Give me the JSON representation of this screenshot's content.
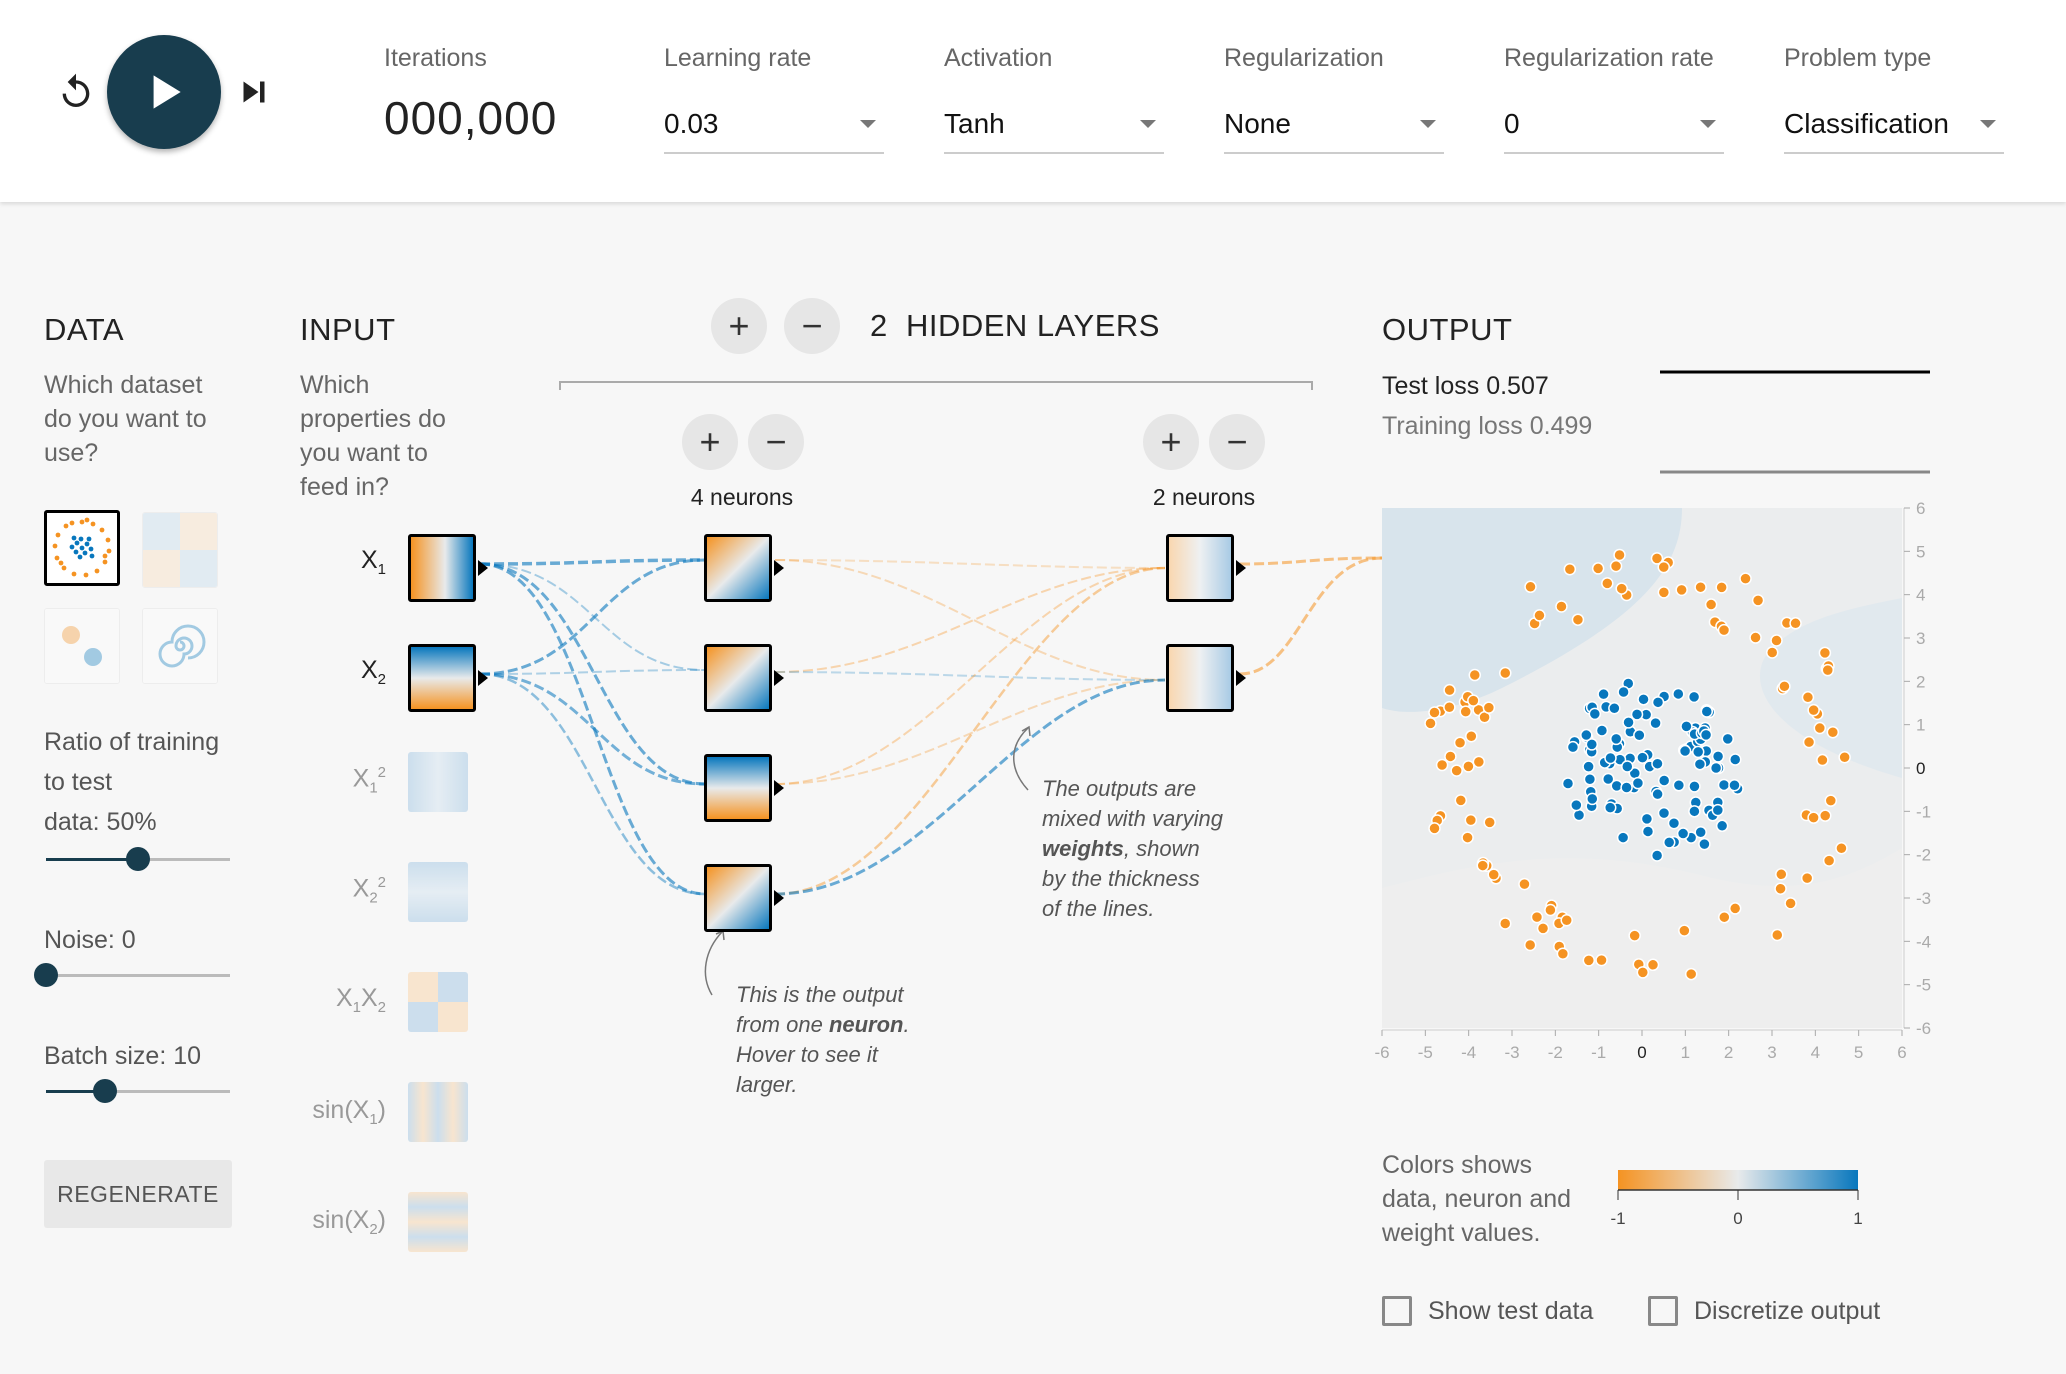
{
  "controls": {
    "reset_icon": "reset-icon",
    "play_icon": "play-icon",
    "step_icon": "step-forward-icon"
  },
  "iterations": {
    "label": "Iterations",
    "value": "000,000"
  },
  "learning_rate": {
    "label": "Learning rate",
    "value": "0.03"
  },
  "activation": {
    "label": "Activation",
    "value": "Tanh"
  },
  "regularization": {
    "label": "Regularization",
    "value": "None"
  },
  "regularization_rate": {
    "label": "Regularization rate",
    "value": "0"
  },
  "problem_type": {
    "label": "Problem type",
    "value": "Classification"
  },
  "data": {
    "title": "DATA",
    "question": [
      "Which dataset",
      "do you want to",
      "use?"
    ],
    "ratio_label": [
      "Ratio of training",
      "to test",
      "data:  50%"
    ],
    "ratio_value": 0.5,
    "noise_label": "Noise:  0",
    "noise_value": 0,
    "batch_label": "Batch size:  10",
    "batch_value": 0.32,
    "regenerate": "REGENERATE"
  },
  "input": {
    "title": "INPUT",
    "question": [
      "Which",
      "properties do",
      "you want to",
      "feed in?"
    ],
    "features": [
      {
        "base": "X",
        "sub": "1",
        "sup": "",
        "active": true
      },
      {
        "base": "X",
        "sub": "2",
        "sup": "",
        "active": true
      },
      {
        "base": "X",
        "sub": "1",
        "sup": "2",
        "active": false
      },
      {
        "base": "X",
        "sub": "2",
        "sup": "2",
        "active": false
      },
      {
        "base": "X",
        "sub": "1",
        "sup": "",
        "base2": "X",
        "sub2": "2",
        "active": false
      },
      {
        "base": "sin(X",
        "sub": "1",
        "sup": "",
        "close": ")",
        "active": false
      },
      {
        "base": "sin(X",
        "sub": "2",
        "sup": "",
        "close": ")",
        "active": false
      }
    ]
  },
  "hidden": {
    "count": "2",
    "title": "HIDDEN LAYERS",
    "layer1_label": "4 neurons",
    "layer2_label": "2 neurons",
    "plus": "+",
    "minus": "−"
  },
  "annotations": {
    "neuron_note": [
      "This is the output",
      "from one ",
      "neuron",
      ".",
      "Hover to see it",
      "larger."
    ],
    "weights_note": [
      "The outputs are",
      "mixed with varying",
      "weights",
      ", shown",
      "by the thickness",
      "of the lines."
    ]
  },
  "output": {
    "title": "OUTPUT",
    "test_loss": "Test loss 0.507",
    "training_loss": "Training loss 0.499",
    "axis_ticks": [
      "-6",
      "-5",
      "-4",
      "-3",
      "-2",
      "-1",
      "0",
      "1",
      "2",
      "3",
      "4",
      "5",
      "6"
    ],
    "legend_text": [
      "Colors shows",
      "data, neuron and",
      "weight values."
    ],
    "legend_min": "-1",
    "legend_mid": "0",
    "legend_max": "1",
    "show_test_data": "Show test data",
    "discretize_output": "Discretize output"
  },
  "colors": {
    "orange": "#f59322",
    "blue": "#0877bd",
    "dark": "#183d4e"
  }
}
